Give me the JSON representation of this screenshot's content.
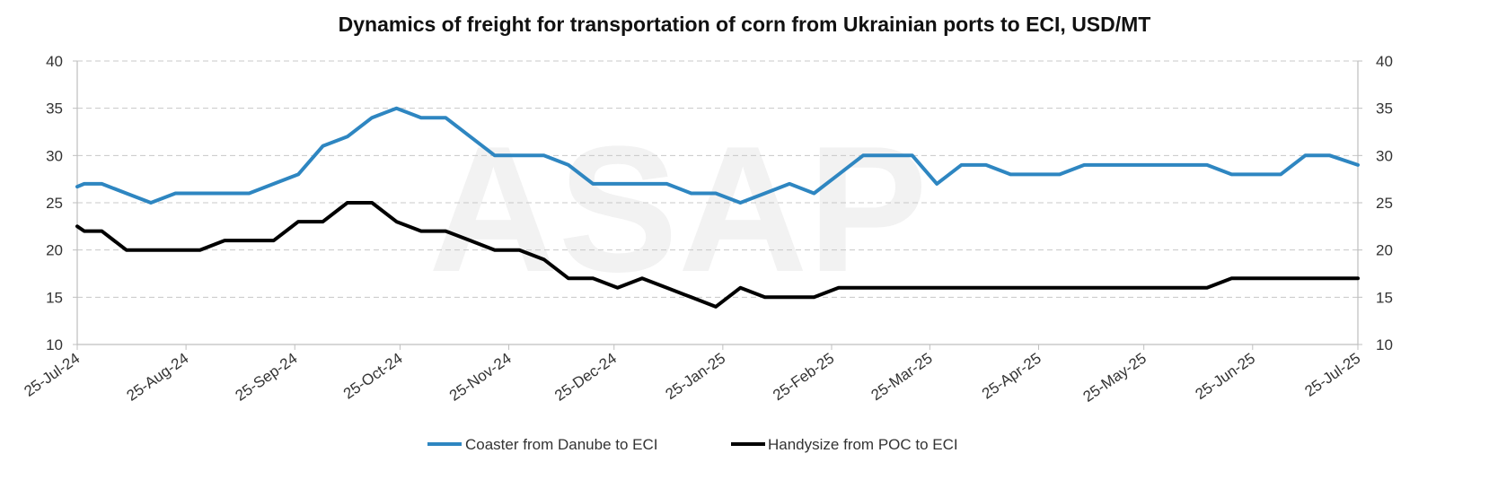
{
  "chart_data": {
    "type": "line",
    "title": "Dynamics of freight for transportation of corn from Ukrainian ports to ECI, USD/MT",
    "watermark": "ASAP",
    "x_ticks": [
      "25-Jul-24",
      "25-Aug-24",
      "25-Sep-24",
      "25-Oct-24",
      "25-Nov-24",
      "25-Dec-24",
      "25-Jan-25",
      "25-Feb-25",
      "25-Mar-25",
      "25-Apr-25",
      "25-May-25",
      "25-Jun-25",
      "25-Jul-25"
    ],
    "x_range": [
      "2024-07-25",
      "2025-07-25"
    ],
    "ylim": [
      10,
      40
    ],
    "y_ticks": [
      10,
      15,
      20,
      25,
      30,
      35,
      40
    ],
    "grid": "horizontal dashed",
    "secondary_y_axis": true,
    "legend_position": "bottom",
    "series": [
      {
        "name": "Coaster from Danube to ECI",
        "color": "#2e86c1",
        "x": [
          "2024-07-25",
          "2024-07-27",
          "2024-08-01",
          "2024-08-08",
          "2024-08-15",
          "2024-08-22",
          "2024-08-29",
          "2024-09-05",
          "2024-09-12",
          "2024-09-19",
          "2024-09-26",
          "2024-10-03",
          "2024-10-10",
          "2024-10-17",
          "2024-10-24",
          "2024-10-31",
          "2024-11-07",
          "2024-11-14",
          "2024-11-21",
          "2024-11-28",
          "2024-12-05",
          "2024-12-12",
          "2024-12-19",
          "2024-12-26",
          "2025-01-02",
          "2025-01-09",
          "2025-01-16",
          "2025-01-23",
          "2025-01-30",
          "2025-02-06",
          "2025-02-13",
          "2025-02-20",
          "2025-02-27",
          "2025-03-06",
          "2025-03-13",
          "2025-03-20",
          "2025-03-27",
          "2025-04-03",
          "2025-04-10",
          "2025-04-17",
          "2025-04-24",
          "2025-05-01",
          "2025-05-08",
          "2025-05-15",
          "2025-05-22",
          "2025-05-29",
          "2025-06-05",
          "2025-06-12",
          "2025-06-19",
          "2025-06-26",
          "2025-07-03",
          "2025-07-10",
          "2025-07-17",
          "2025-07-25"
        ],
        "values": [
          26.7,
          27,
          27,
          26,
          25,
          26,
          26,
          26,
          26,
          27,
          28,
          31,
          32,
          34,
          35,
          34,
          34,
          32,
          30,
          30,
          30,
          29,
          27,
          27,
          27,
          27,
          26,
          26,
          25,
          26,
          27,
          26,
          28,
          30,
          30,
          30,
          27,
          29,
          29,
          28,
          28,
          28,
          29,
          29,
          29,
          29,
          29,
          29,
          28,
          28,
          28,
          30,
          30,
          29
        ]
      },
      {
        "name": "Handysize from POC to ECI",
        "color": "#000000",
        "x": [
          "2024-07-25",
          "2024-07-27",
          "2024-08-01",
          "2024-08-08",
          "2024-08-15",
          "2024-08-22",
          "2024-08-29",
          "2024-09-05",
          "2024-09-12",
          "2024-09-19",
          "2024-09-26",
          "2024-10-03",
          "2024-10-10",
          "2024-10-17",
          "2024-10-24",
          "2024-10-31",
          "2024-11-07",
          "2024-11-14",
          "2024-11-21",
          "2024-11-28",
          "2024-12-05",
          "2024-12-12",
          "2024-12-19",
          "2024-12-26",
          "2025-01-02",
          "2025-01-09",
          "2025-01-16",
          "2025-01-23",
          "2025-01-30",
          "2025-02-06",
          "2025-02-13",
          "2025-02-20",
          "2025-02-27",
          "2025-03-06",
          "2025-03-13",
          "2025-03-20",
          "2025-03-27",
          "2025-04-03",
          "2025-04-10",
          "2025-04-17",
          "2025-04-24",
          "2025-05-01",
          "2025-05-08",
          "2025-05-15",
          "2025-05-22",
          "2025-05-29",
          "2025-06-05",
          "2025-06-12",
          "2025-06-19",
          "2025-06-26",
          "2025-07-03",
          "2025-07-10",
          "2025-07-17",
          "2025-07-25"
        ],
        "values": [
          22.5,
          22,
          22,
          20,
          20,
          20,
          20,
          21,
          21,
          21,
          23,
          23,
          25,
          25,
          23,
          22,
          22,
          21,
          20,
          20,
          19,
          17,
          17,
          16,
          17,
          16,
          15,
          14,
          16,
          15,
          15,
          15,
          16,
          16,
          16,
          16,
          16,
          16,
          16,
          16,
          16,
          16,
          16,
          16,
          16,
          16,
          16,
          16,
          17,
          17,
          17,
          17,
          17,
          17
        ]
      }
    ]
  }
}
